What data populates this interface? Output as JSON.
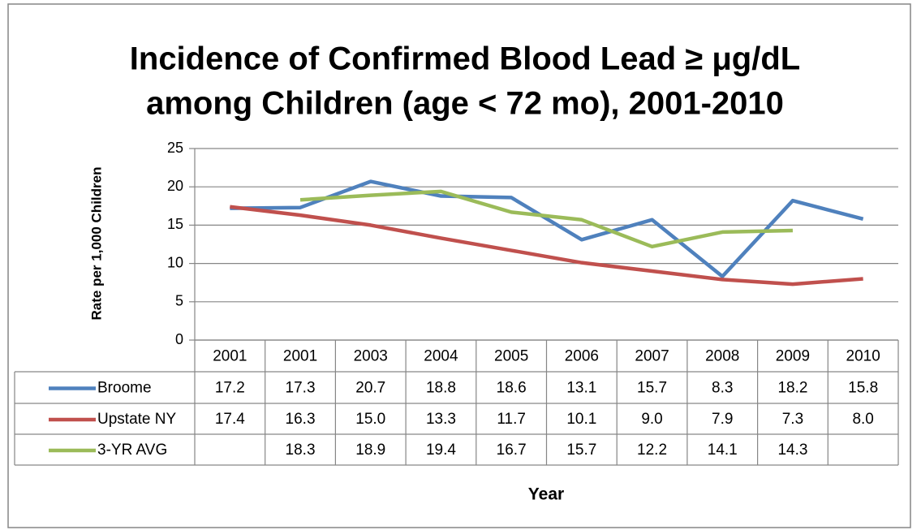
{
  "chart_data": {
    "type": "line",
    "title": [
      "Incidence of Confirmed Blood Lead ≥ μg/dL",
      "among Children (age < 72 mo), 2001-2010"
    ],
    "y_label": "Rate per 1,000 Children",
    "x_label": "Year",
    "categories": [
      "2001",
      "2001",
      "2003",
      "2004",
      "2005",
      "2006",
      "2007",
      "2008",
      "2009",
      "2010"
    ],
    "series": [
      {
        "name": "Broome",
        "color": "#4f81bd",
        "values": [
          17.2,
          17.3,
          20.7,
          18.8,
          18.6,
          13.1,
          15.7,
          8.3,
          18.2,
          15.8
        ]
      },
      {
        "name": "Upstate NY",
        "color": "#c0504d",
        "values": [
          17.4,
          16.3,
          15.0,
          13.3,
          11.7,
          10.1,
          9.0,
          7.9,
          7.3,
          8.0
        ],
        "value_labels": [
          "17.4",
          "16.3",
          "15.0",
          "13.3",
          "11.7",
          "10.1",
          "9.0",
          "7.9",
          "7.3",
          "8.0"
        ]
      },
      {
        "name": "3-YR AVG",
        "color": "#9bbb59",
        "values": [
          null,
          18.3,
          18.9,
          19.4,
          16.7,
          15.7,
          12.2,
          14.1,
          14.3,
          null
        ]
      }
    ],
    "ylim": [
      0,
      25
    ],
    "yticks": [
      0,
      5,
      10,
      15,
      20,
      25
    ],
    "grid": true,
    "data_table": true
  }
}
